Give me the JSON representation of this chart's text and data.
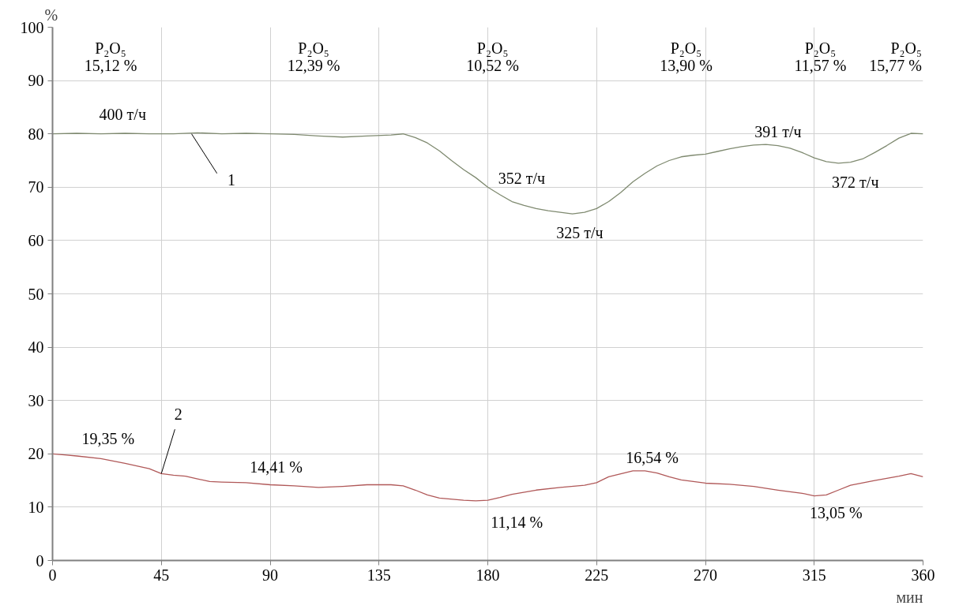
{
  "chart_data": {
    "type": "line",
    "xlabel": "мин",
    "ylabel": "%",
    "xlim": [
      0,
      360
    ],
    "xticks": [
      0,
      45,
      90,
      135,
      180,
      225,
      270,
      315,
      360
    ],
    "ylim": [
      0,
      100
    ],
    "yticks": [
      0,
      10,
      20,
      30,
      40,
      50,
      60,
      70,
      80,
      90,
      100
    ],
    "grid": true,
    "marker": "none",
    "line_style": "solid",
    "series": [
      {
        "color": "#7f8a70",
        "x": [
          0,
          10,
          20,
          30,
          40,
          50,
          60,
          70,
          80,
          90,
          100,
          110,
          120,
          130,
          140,
          145,
          150,
          155,
          160,
          165,
          170,
          175,
          180,
          185,
          190,
          195,
          200,
          205,
          210,
          215,
          220,
          225,
          230,
          235,
          240,
          245,
          250,
          255,
          260,
          265,
          270,
          275,
          280,
          285,
          290,
          295,
          300,
          305,
          310,
          315,
          320,
          325,
          330,
          335,
          340,
          345,
          350,
          355,
          360
        ],
        "values": [
          80,
          80.1,
          80,
          80.1,
          80,
          80,
          80.2,
          80,
          80.1,
          80,
          79.9,
          79.6,
          79.4,
          79.6,
          79.8,
          80,
          79.3,
          78.3,
          76.8,
          75,
          73.3,
          71.8,
          70,
          68.6,
          67.3,
          66.6,
          66,
          65.6,
          65.3,
          65,
          65.3,
          66,
          67.3,
          69,
          71,
          72.6,
          74,
          75,
          75.7,
          76,
          76.2,
          76.7,
          77.2,
          77.6,
          77.9,
          78,
          77.8,
          77.3,
          76.5,
          75.5,
          74.8,
          74.5,
          74.7,
          75.3,
          76.5,
          77.8,
          79.2,
          80.1,
          80
        ]
      },
      {
        "color": "#b05858",
        "x": [
          0,
          5,
          10,
          20,
          30,
          40,
          45,
          50,
          55,
          60,
          65,
          70,
          80,
          90,
          100,
          110,
          120,
          130,
          140,
          145,
          150,
          155,
          160,
          170,
          175,
          180,
          185,
          190,
          200,
          210,
          220,
          225,
          230,
          240,
          245,
          250,
          255,
          260,
          270,
          280,
          290,
          300,
          310,
          315,
          320,
          325,
          330,
          340,
          350,
          355,
          360
        ],
        "values": [
          20,
          19.8,
          19.6,
          19.1,
          18.2,
          17.2,
          16.3,
          16,
          15.8,
          15.3,
          14.8,
          14.7,
          14.6,
          14.2,
          14,
          13.7,
          13.9,
          14.2,
          14.2,
          14,
          13.2,
          12.3,
          11.7,
          11.3,
          11.2,
          11.3,
          11.8,
          12.4,
          13.2,
          13.7,
          14.1,
          14.6,
          15.7,
          16.8,
          16.8,
          16.4,
          15.7,
          15.1,
          14.5,
          14.3,
          13.9,
          13.2,
          12.6,
          12.1,
          12.3,
          13.2,
          14.1,
          15,
          15.8,
          16.3,
          15.7
        ]
      }
    ],
    "annotations": [
      "P₂O₅\n15,12 %",
      "P₂O₅\n12,39 %",
      "P₂O₅\n10,52 %",
      "P₂O₅\n13,90 %",
      "P₂O₅\n11,57 %",
      "P₂O₅\n15,77 %",
      {
        "text": "400 т/ч",
        "x": 30,
        "y": 80
      },
      {
        "text": "352 т/ч",
        "x": 180,
        "y": 70
      },
      {
        "text": "325 т/ч",
        "x": 215,
        "y": 65
      },
      {
        "text": "391 т/ч",
        "x": 295,
        "y": 78
      },
      {
        "text": "372 т/ч",
        "x": 325,
        "y": 74.5
      },
      {
        "text": "1",
        "x": 57.5,
        "y": 80
      },
      {
        "text": "19,35 %",
        "x": 20,
        "y": 19.1
      },
      {
        "text": "2",
        "x": 45,
        "y": 16.3
      },
      {
        "text": "14,41 %",
        "x": 90,
        "y": 14.2
      },
      {
        "text": "11,14 %",
        "x": 175,
        "y": 11.2
      },
      {
        "text": "16,54 %",
        "x": 245,
        "y": 16.8
      },
      {
        "text": "13,05 %",
        "x": 315,
        "y": 12.1
      }
    ]
  }
}
